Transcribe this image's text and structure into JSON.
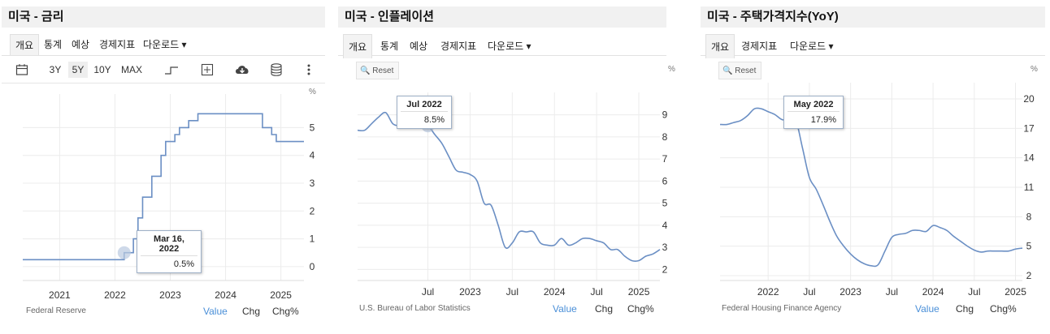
{
  "panels": [
    {
      "title": "미국 - 금리",
      "tabs": [
        "개요",
        "통계",
        "예상",
        "경제지표",
        "다운로드"
      ],
      "toolbar": {
        "ranges": [
          "3Y",
          "5Y",
          "10Y",
          "MAX"
        ],
        "selected_range": "5Y",
        "icons": [
          "calendar-icon",
          "step-line-icon",
          "add-series-icon",
          "cloud-download-icon",
          "database-icon",
          "more-icon"
        ]
      },
      "unit": "%",
      "source": "Federal Reserve",
      "value_options": [
        "Value",
        "Chg",
        "Chg%"
      ],
      "tooltip": {
        "date": "Mar 16, 2022",
        "value": "0.5%"
      }
    },
    {
      "title": "미국 - 인플레이션",
      "tabs": [
        "개요",
        "통계",
        "예상",
        "경제지표",
        "다운로드"
      ],
      "reset_label": "Reset",
      "unit": "%",
      "source": "U.S. Bureau of Labor Statistics",
      "value_options": [
        "Value",
        "Chg",
        "Chg%"
      ],
      "tooltip": {
        "date": "Jul 2022",
        "value": "8.5%"
      }
    },
    {
      "title": "미국 - 주택가격지수(YoY)",
      "tabs": [
        "개요",
        "경제지표",
        "다운로드"
      ],
      "reset_label": "Reset",
      "unit": "%",
      "source": "Federal Housing Finance Agency",
      "value_options": [
        "Value",
        "Chg",
        "Chg%"
      ],
      "tooltip": {
        "date": "May 2022",
        "value": "17.9%"
      }
    }
  ],
  "chart_data": [
    {
      "type": "line",
      "step": true,
      "x_ticks": [
        "2021",
        "2022",
        "2023",
        "2024",
        "2025"
      ],
      "xlim": [
        "2020-05",
        "2025-06"
      ],
      "ylim": [
        -0.5,
        5.8
      ],
      "y_ticks": [
        0,
        1,
        2,
        3,
        4,
        5
      ],
      "grid": true,
      "x": [
        "2020-05",
        "2022-03",
        "2022-05",
        "2022-06",
        "2022-07",
        "2022-09",
        "2022-11",
        "2022-12",
        "2023-02",
        "2023-03",
        "2023-05",
        "2023-07",
        "2024-09",
        "2024-11",
        "2024-12",
        "2025-06"
      ],
      "values": [
        0.25,
        0.5,
        1.0,
        1.75,
        2.5,
        3.25,
        4.0,
        4.5,
        4.75,
        5.0,
        5.25,
        5.5,
        5.0,
        4.75,
        4.5,
        4.5
      ],
      "line_color": "#6b8fc4"
    },
    {
      "type": "line",
      "x_ticks": [
        "Jul",
        "2023",
        "Jul",
        "2024",
        "Jul",
        "2025"
      ],
      "xlim": [
        "2021-09",
        "2025-04"
      ],
      "ylim": [
        1.5,
        9.5
      ],
      "y_ticks": [
        2,
        3,
        4,
        5,
        6,
        7,
        8,
        9
      ],
      "grid": true,
      "x": [
        "2021-09",
        "2021-10",
        "2021-11",
        "2021-12",
        "2022-01",
        "2022-02",
        "2022-03",
        "2022-04",
        "2022-05",
        "2022-06",
        "2022-07",
        "2022-08",
        "2022-09",
        "2022-10",
        "2022-11",
        "2022-12",
        "2023-01",
        "2023-02",
        "2023-03",
        "2023-04",
        "2023-05",
        "2023-06",
        "2023-07",
        "2023-08",
        "2023-09",
        "2023-10",
        "2023-11",
        "2023-12",
        "2024-01",
        "2024-02",
        "2024-03",
        "2024-04",
        "2024-05",
        "2024-06",
        "2024-07",
        "2024-08",
        "2024-09",
        "2024-10",
        "2024-11",
        "2024-12",
        "2025-01",
        "2025-02",
        "2025-03",
        "2025-04"
      ],
      "values": [
        8.3,
        8.3,
        8.6,
        8.9,
        9.1,
        8.6,
        8.5,
        8.5,
        8.6,
        8.5,
        8.5,
        8.1,
        7.7,
        7.1,
        6.5,
        6.4,
        6.3,
        6.0,
        5.0,
        4.9,
        4.0,
        3.0,
        3.2,
        3.7,
        3.7,
        3.7,
        3.2,
        3.1,
        3.1,
        3.4,
        3.1,
        3.2,
        3.4,
        3.4,
        3.3,
        3.2,
        2.9,
        2.9,
        2.6,
        2.4,
        2.4,
        2.6,
        2.7,
        2.9
      ],
      "line_color": "#6b8fc4"
    },
    {
      "type": "line",
      "x_ticks": [
        "2022",
        "Jul",
        "2023",
        "Jul",
        "2024",
        "Jul",
        "2025"
      ],
      "xlim": [
        "2021-06",
        "2025-02"
      ],
      "ylim": [
        1.5,
        20.5
      ],
      "y_ticks": [
        2,
        5,
        8,
        11,
        14,
        17,
        20
      ],
      "grid": true,
      "x": [
        "2021-06",
        "2021-07",
        "2021-08",
        "2021-09",
        "2021-10",
        "2021-11",
        "2021-12",
        "2022-01",
        "2022-02",
        "2022-03",
        "2022-04",
        "2022-05",
        "2022-06",
        "2022-07",
        "2022-08",
        "2022-09",
        "2022-10",
        "2022-11",
        "2022-12",
        "2023-01",
        "2023-02",
        "2023-03",
        "2023-04",
        "2023-05",
        "2023-06",
        "2023-07",
        "2023-08",
        "2023-09",
        "2023-10",
        "2023-11",
        "2023-12",
        "2024-01",
        "2024-02",
        "2024-03",
        "2024-04",
        "2024-05",
        "2024-06",
        "2024-07",
        "2024-08",
        "2024-09",
        "2024-10",
        "2024-11",
        "2024-12",
        "2025-01",
        "2025-02"
      ],
      "values": [
        17.4,
        17.4,
        17.6,
        17.8,
        18.3,
        19.0,
        19.0,
        18.7,
        18.4,
        17.9,
        17.9,
        17.9,
        15.0,
        12.0,
        10.8,
        9.2,
        7.5,
        6.0,
        5.0,
        4.2,
        3.6,
        3.2,
        3.0,
        3.1,
        4.5,
        5.9,
        6.2,
        6.3,
        6.6,
        6.6,
        6.5,
        7.1,
        6.9,
        6.6,
        6.0,
        5.5,
        5.0,
        4.6,
        4.4,
        4.5,
        4.5,
        4.5,
        4.5,
        4.7,
        4.8
      ],
      "line_color": "#6b8fc4"
    }
  ]
}
